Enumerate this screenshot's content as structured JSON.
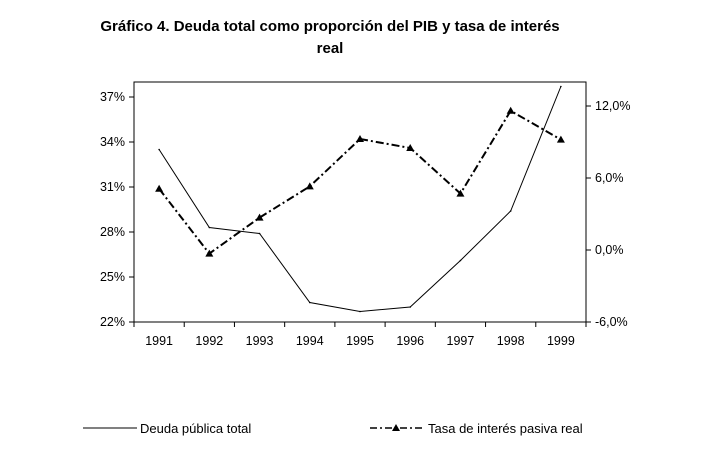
{
  "chart_data": {
    "type": "line",
    "title_line1": "Gráfico 4.  Deuda total como proporción del PIB y tasa de interés",
    "title_line2": "real",
    "x": [
      "1991",
      "1992",
      "1993",
      "1994",
      "1995",
      "1996",
      "1997",
      "1998",
      "1999"
    ],
    "left_axis": {
      "ticks": [
        22,
        25,
        28,
        31,
        34,
        37
      ],
      "tick_labels": [
        "22%",
        "25%",
        "28%",
        "31%",
        "34%",
        "37%"
      ],
      "ylim": [
        22,
        37
      ]
    },
    "right_axis": {
      "ticks": [
        -6,
        0,
        6,
        12
      ],
      "tick_labels": [
        "-6,0%",
        "0,0%",
        "6,0%",
        "12,0%"
      ],
      "ylim": [
        -6,
        12
      ]
    },
    "series": [
      {
        "name": "Deuda pública total",
        "axis": "left",
        "style": "solid",
        "values": [
          33.5,
          28.3,
          27.9,
          23.3,
          22.7,
          23.0,
          26.1,
          29.4,
          37.7
        ]
      },
      {
        "name": "Tasa de interés pasiva real",
        "axis": "right",
        "style": "dash-dot-triangle",
        "values": [
          5.1,
          -0.3,
          2.7,
          5.3,
          9.25,
          8.5,
          4.7,
          11.6,
          9.2
        ]
      }
    ],
    "grid": false,
    "legend_placement": "bottom"
  }
}
